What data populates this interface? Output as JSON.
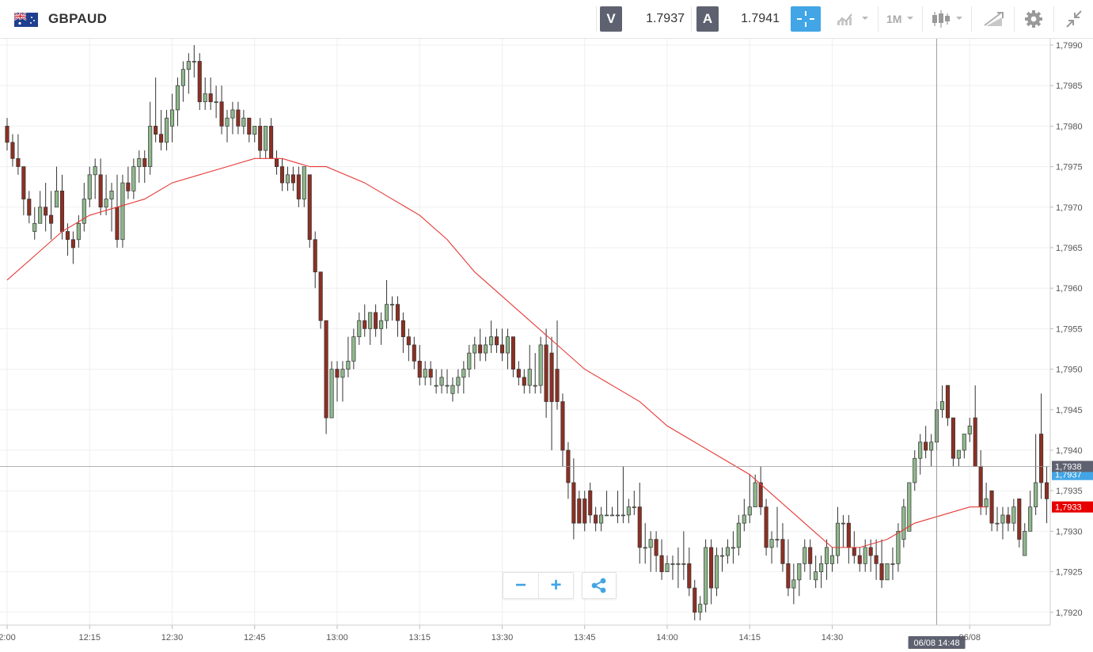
{
  "header": {
    "symbol": "GBPAUD",
    "flag_icon": "gb-au-flag-icon",
    "bid_label": "V",
    "bid_value": "1.7937",
    "ask_label": "A",
    "ask_value": "1.7941",
    "timeframe_label": "1M",
    "tools": [
      "crosshair-icon",
      "indicators-icon",
      "timeframe-dropdown",
      "chart-type-candles-icon",
      "drawing-tools-icon",
      "gear-icon",
      "collapse-icon"
    ],
    "accent_color": "#42a5e5"
  },
  "chart_data": {
    "type": "candlestick",
    "title": "",
    "xlabel": "",
    "ylabel": "",
    "ylim": [
      1.7918,
      1.7991
    ],
    "y_ticks": [
      "1,7990",
      "1,7985",
      "1,7980",
      "1,7975",
      "1,7970",
      "1,7965",
      "1,7960",
      "1,7955",
      "1,7950",
      "1,7945",
      "1,7940",
      "1,7935",
      "1,7930",
      "1,7925",
      "1,7920"
    ],
    "x_ticks": [
      {
        "label": "2:00",
        "minute": 720
      },
      {
        "label": "12:15",
        "minute": 735
      },
      {
        "label": "12:30",
        "minute": 750
      },
      {
        "label": "12:45",
        "minute": 765
      },
      {
        "label": "13:00",
        "minute": 780
      },
      {
        "label": "13:15",
        "minute": 795
      },
      {
        "label": "13:30",
        "minute": 810
      },
      {
        "label": "13:45",
        "minute": 825
      },
      {
        "label": "14:00",
        "minute": 840
      },
      {
        "label": "14:15",
        "minute": 855
      },
      {
        "label": "14:30",
        "minute": 870
      },
      {
        "label": "06/08",
        "minute": 895
      }
    ],
    "candle_interval_minutes": 1,
    "first_candle_minute": 720,
    "ohlc": [
      [
        1.798,
        1.7981,
        1.7977,
        1.7978
      ],
      [
        1.7978,
        1.7979,
        1.7975,
        1.7976
      ],
      [
        1.7976,
        1.7979,
        1.7974,
        1.7975
      ],
      [
        1.7975,
        1.7975,
        1.7969,
        1.7971
      ],
      [
        1.7971,
        1.7972,
        1.7968,
        1.7969
      ],
      [
        1.7967,
        1.797,
        1.7966,
        1.7968
      ],
      [
        1.7968,
        1.7972,
        1.7968,
        1.797
      ],
      [
        1.797,
        1.7973,
        1.7967,
        1.7969
      ],
      [
        1.7969,
        1.7972,
        1.7966,
        1.7968
      ],
      [
        1.797,
        1.7975,
        1.797,
        1.7972
      ],
      [
        1.7972,
        1.7974,
        1.7966,
        1.7967
      ],
      [
        1.7967,
        1.7968,
        1.7964,
        1.7966
      ],
      [
        1.7966,
        1.7967,
        1.7963,
        1.7965
      ],
      [
        1.7966,
        1.7969,
        1.7965,
        1.7968
      ],
      [
        1.7968,
        1.7973,
        1.7967,
        1.7971
      ],
      [
        1.7971,
        1.7975,
        1.797,
        1.7974
      ],
      [
        1.7974,
        1.7976,
        1.7971,
        1.7975
      ],
      [
        1.7974,
        1.7976,
        1.7969,
        1.797
      ],
      [
        1.797,
        1.7974,
        1.7969,
        1.7971
      ],
      [
        1.7971,
        1.7973,
        1.7967,
        1.7972
      ],
      [
        1.797,
        1.7974,
        1.7965,
        1.7966
      ],
      [
        1.7966,
        1.7974,
        1.7965,
        1.7973
      ],
      [
        1.7973,
        1.7975,
        1.7971,
        1.7972
      ],
      [
        1.7972,
        1.7976,
        1.7971,
        1.7975
      ],
      [
        1.7975,
        1.7977,
        1.7973,
        1.7976
      ],
      [
        1.7976,
        1.7977,
        1.7973,
        1.7975
      ],
      [
        1.7975,
        1.7983,
        1.7974,
        1.798
      ],
      [
        1.798,
        1.7986,
        1.7978,
        1.7979
      ],
      [
        1.7979,
        1.7982,
        1.7977,
        1.7978
      ],
      [
        1.7978,
        1.7982,
        1.7977,
        1.7981
      ],
      [
        1.798,
        1.7984,
        1.7978,
        1.7982
      ],
      [
        1.7982,
        1.7986,
        1.798,
        1.7985
      ],
      [
        1.7985,
        1.7988,
        1.7983,
        1.7987
      ],
      [
        1.7987,
        1.7989,
        1.7984,
        1.7988
      ],
      [
        1.7988,
        1.799,
        1.7986,
        1.7988
      ],
      [
        1.7988,
        1.7989,
        1.7982,
        1.7983
      ],
      [
        1.7983,
        1.7986,
        1.7982,
        1.7984
      ],
      [
        1.7984,
        1.7986,
        1.7982,
        1.7983
      ],
      [
        1.7983,
        1.7985,
        1.7981,
        1.7983
      ],
      [
        1.7983,
        1.7985,
        1.7979,
        1.798
      ],
      [
        1.798,
        1.7982,
        1.7978,
        1.7981
      ],
      [
        1.7981,
        1.7983,
        1.7979,
        1.7982
      ],
      [
        1.7982,
        1.7983,
        1.7979,
        1.798
      ],
      [
        1.798,
        1.7982,
        1.7979,
        1.7981
      ],
      [
        1.7981,
        1.7981,
        1.7978,
        1.7979
      ],
      [
        1.7979,
        1.798,
        1.7978,
        1.798
      ],
      [
        1.798,
        1.7981,
        1.7976,
        1.7977
      ],
      [
        1.7977,
        1.798,
        1.7976,
        1.798
      ],
      [
        1.798,
        1.7981,
        1.7976,
        1.7976
      ],
      [
        1.7976,
        1.7977,
        1.7974,
        1.7975
      ],
      [
        1.7975,
        1.7976,
        1.7972,
        1.7973
      ],
      [
        1.7973,
        1.7975,
        1.7972,
        1.7974
      ],
      [
        1.7974,
        1.7975,
        1.7972,
        1.7973
      ],
      [
        1.7974,
        1.7975,
        1.797,
        1.7971
      ],
      [
        1.7971,
        1.7975,
        1.797,
        1.7975
      ],
      [
        1.7974,
        1.7974,
        1.7965,
        1.7966
      ],
      [
        1.7966,
        1.7967,
        1.796,
        1.7962
      ],
      [
        1.7962,
        1.7962,
        1.7955,
        1.7956
      ],
      [
        1.7956,
        1.7956,
        1.7942,
        1.7944
      ],
      [
        1.7944,
        1.7951,
        1.7944,
        1.795
      ],
      [
        1.795,
        1.7951,
        1.7946,
        1.7949
      ],
      [
        1.7949,
        1.7951,
        1.7946,
        1.795
      ],
      [
        1.795,
        1.7954,
        1.7949,
        1.7951
      ],
      [
        1.7951,
        1.7955,
        1.795,
        1.7954
      ],
      [
        1.7954,
        1.7957,
        1.7953,
        1.7956
      ],
      [
        1.7956,
        1.7958,
        1.7954,
        1.7955
      ],
      [
        1.7955,
        1.7957,
        1.7953,
        1.7957
      ],
      [
        1.7957,
        1.7958,
        1.7954,
        1.7955
      ],
      [
        1.7955,
        1.7957,
        1.7953,
        1.7956
      ],
      [
        1.7956,
        1.7961,
        1.7955,
        1.7958
      ],
      [
        1.7958,
        1.7959,
        1.7956,
        1.7958
      ],
      [
        1.7958,
        1.7959,
        1.7954,
        1.7956
      ],
      [
        1.7956,
        1.7957,
        1.7952,
        1.7954
      ],
      [
        1.7954,
        1.7955,
        1.7951,
        1.7953
      ],
      [
        1.7953,
        1.7954,
        1.795,
        1.7951
      ],
      [
        1.7951,
        1.7953,
        1.7948,
        1.7949
      ],
      [
        1.7949,
        1.7951,
        1.7948,
        1.795
      ],
      [
        1.795,
        1.7951,
        1.7948,
        1.7949
      ],
      [
        1.7948,
        1.795,
        1.7947,
        1.7948
      ],
      [
        1.7948,
        1.795,
        1.7947,
        1.7949
      ],
      [
        1.7948,
        1.795,
        1.7947,
        1.7948
      ],
      [
        1.7947,
        1.7949,
        1.7946,
        1.7948
      ],
      [
        1.7948,
        1.795,
        1.7947,
        1.7949
      ],
      [
        1.7949,
        1.7951,
        1.7947,
        1.795
      ],
      [
        1.795,
        1.7953,
        1.7949,
        1.7952
      ],
      [
        1.7952,
        1.7954,
        1.795,
        1.7953
      ],
      [
        1.7953,
        1.7955,
        1.7951,
        1.7952
      ],
      [
        1.7952,
        1.7954,
        1.7951,
        1.7953
      ],
      [
        1.7953,
        1.7956,
        1.7952,
        1.7954
      ],
      [
        1.7954,
        1.7955,
        1.7952,
        1.7953
      ],
      [
        1.7953,
        1.7955,
        1.7951,
        1.7952
      ],
      [
        1.7952,
        1.7955,
        1.795,
        1.7954
      ],
      [
        1.7954,
        1.7954,
        1.7949,
        1.795
      ],
      [
        1.795,
        1.7951,
        1.7948,
        1.7949
      ],
      [
        1.7949,
        1.795,
        1.7947,
        1.7948
      ],
      [
        1.7948,
        1.7953,
        1.7947,
        1.795
      ],
      [
        1.7948,
        1.7952,
        1.7947,
        1.7948
      ],
      [
        1.7948,
        1.7954,
        1.7947,
        1.7953
      ],
      [
        1.7953,
        1.7955,
        1.7944,
        1.7946
      ],
      [
        1.7952,
        1.7954,
        1.794,
        1.7946
      ],
      [
        1.795,
        1.7956,
        1.7945,
        1.7946
      ],
      [
        1.7946,
        1.7947,
        1.7938,
        1.794
      ],
      [
        1.794,
        1.7941,
        1.7934,
        1.7936
      ],
      [
        1.7936,
        1.7939,
        1.7929,
        1.7931
      ],
      [
        1.7934,
        1.7935,
        1.7931,
        1.7931
      ],
      [
        1.7934,
        1.7935,
        1.793,
        1.7931
      ],
      [
        1.7935,
        1.7936,
        1.7931,
        1.7932
      ],
      [
        1.7932,
        1.7933,
        1.793,
        1.7931
      ],
      [
        1.7931,
        1.7933,
        1.793,
        1.7932
      ],
      [
        1.7932,
        1.7935,
        1.7932,
        1.7932
      ],
      [
        1.7932,
        1.7933,
        1.7932,
        1.7932
      ],
      [
        1.7932,
        1.7935,
        1.7931,
        1.7932
      ],
      [
        1.7932,
        1.7938,
        1.7931,
        1.7932
      ],
      [
        1.7932,
        1.7934,
        1.7931,
        1.7933
      ],
      [
        1.7933,
        1.7935,
        1.7932,
        1.7933
      ],
      [
        1.7933,
        1.7936,
        1.7926,
        1.7928
      ],
      [
        1.7928,
        1.7931,
        1.7926,
        1.7928
      ],
      [
        1.7928,
        1.793,
        1.7925,
        1.7929
      ],
      [
        1.7929,
        1.793,
        1.7925,
        1.7927
      ],
      [
        1.7927,
        1.7929,
        1.7924,
        1.7925
      ],
      [
        1.7925,
        1.7927,
        1.7925,
        1.7926
      ],
      [
        1.7926,
        1.7927,
        1.7924,
        1.7926
      ],
      [
        1.7926,
        1.7928,
        1.7923,
        1.7926
      ],
      [
        1.7926,
        1.793,
        1.7924,
        1.7926
      ],
      [
        1.7926,
        1.7928,
        1.7922,
        1.7923
      ],
      [
        1.7923,
        1.7924,
        1.7919,
        1.792
      ],
      [
        1.792,
        1.7922,
        1.7919,
        1.7921
      ],
      [
        1.7921,
        1.7929,
        1.792,
        1.7928
      ],
      [
        1.7928,
        1.7929,
        1.7921,
        1.7923
      ],
      [
        1.7923,
        1.7928,
        1.7922,
        1.7927
      ],
      [
        1.7927,
        1.7928,
        1.7925,
        1.7927
      ],
      [
        1.7927,
        1.7929,
        1.7926,
        1.7928
      ],
      [
        1.7928,
        1.793,
        1.7926,
        1.7928
      ],
      [
        1.7928,
        1.7932,
        1.7927,
        1.7931
      ],
      [
        1.7931,
        1.7934,
        1.793,
        1.7932
      ],
      [
        1.7932,
        1.7937,
        1.7931,
        1.7933
      ],
      [
        1.7933,
        1.7937,
        1.7933,
        1.7936
      ],
      [
        1.7936,
        1.7938,
        1.7932,
        1.7933
      ],
      [
        1.7933,
        1.7934,
        1.7927,
        1.7928
      ],
      [
        1.7928,
        1.793,
        1.7926,
        1.7929
      ],
      [
        1.7929,
        1.7933,
        1.7928,
        1.7929
      ],
      [
        1.7929,
        1.7931,
        1.7925,
        1.7926
      ],
      [
        1.7926,
        1.7929,
        1.7922,
        1.7923
      ],
      [
        1.7923,
        1.7926,
        1.7921,
        1.7924
      ],
      [
        1.7924,
        1.7926,
        1.7922,
        1.7926
      ],
      [
        1.7926,
        1.7929,
        1.7925,
        1.7928
      ],
      [
        1.7928,
        1.7929,
        1.7924,
        1.7926
      ],
      [
        1.7924,
        1.7927,
        1.7923,
        1.7925
      ],
      [
        1.7925,
        1.7927,
        1.7923,
        1.7926
      ],
      [
        1.7926,
        1.7929,
        1.7924,
        1.7928
      ],
      [
        1.7926,
        1.7928,
        1.7925,
        1.7927
      ],
      [
        1.7927,
        1.7933,
        1.7926,
        1.7931
      ],
      [
        1.7931,
        1.7932,
        1.7928,
        1.7931
      ],
      [
        1.7931,
        1.7932,
        1.7926,
        1.7928
      ],
      [
        1.7928,
        1.793,
        1.7926,
        1.7927
      ],
      [
        1.7927,
        1.7928,
        1.7925,
        1.7926
      ],
      [
        1.7926,
        1.7929,
        1.7925,
        1.7928
      ],
      [
        1.7928,
        1.7929,
        1.7925,
        1.7927
      ],
      [
        1.7927,
        1.7929,
        1.7924,
        1.7926
      ],
      [
        1.7926,
        1.7929,
        1.7923,
        1.7924
      ],
      [
        1.7924,
        1.7926,
        1.7924,
        1.7926
      ],
      [
        1.7926,
        1.7928,
        1.7924,
        1.7926
      ],
      [
        1.7926,
        1.7931,
        1.7925,
        1.793
      ],
      [
        1.7929,
        1.7934,
        1.7928,
        1.7933
      ],
      [
        1.793,
        1.7936,
        1.793,
        1.7936
      ],
      [
        1.7936,
        1.794,
        1.7935,
        1.7939
      ],
      [
        1.7939,
        1.7942,
        1.7937,
        1.7941
      ],
      [
        1.7941,
        1.7943,
        1.7939,
        1.794
      ],
      [
        1.794,
        1.7942,
        1.7938,
        1.7941
      ],
      [
        1.7941,
        1.7946,
        1.794,
        1.7945
      ],
      [
        1.7945,
        1.7948,
        1.7944,
        1.7946
      ],
      [
        1.7948,
        1.7948,
        1.7943,
        1.7944
      ],
      [
        1.7944,
        1.7944,
        1.7938,
        1.7939
      ],
      [
        1.7939,
        1.794,
        1.7938,
        1.794
      ],
      [
        1.794,
        1.7942,
        1.7939,
        1.7942
      ],
      [
        1.7942,
        1.7944,
        1.7941,
        1.7943
      ],
      [
        1.7944,
        1.7948,
        1.7938,
        1.7938
      ],
      [
        1.7938,
        1.794,
        1.7932,
        1.7933
      ],
      [
        1.7933,
        1.7936,
        1.7932,
        1.7934
      ],
      [
        1.7935,
        1.7935,
        1.793,
        1.7931
      ],
      [
        1.7931,
        1.7933,
        1.793,
        1.7931
      ],
      [
        1.7931,
        1.7933,
        1.7929,
        1.7932
      ],
      [
        1.7932,
        1.7933,
        1.793,
        1.7931
      ],
      [
        1.7931,
        1.7934,
        1.793,
        1.7933
      ],
      [
        1.7934,
        1.7934,
        1.7928,
        1.7929
      ],
      [
        1.7927,
        1.7931,
        1.7927,
        1.793
      ],
      [
        1.793,
        1.7935,
        1.793,
        1.7933
      ],
      [
        1.7933,
        1.7942,
        1.7932,
        1.7936
      ],
      [
        1.7942,
        1.7947,
        1.7934,
        1.7936
      ],
      [
        1.7936,
        1.7938,
        1.7931,
        1.7934
      ],
      [
        1.7934,
        1.7939,
        1.7933,
        1.7937
      ]
    ],
    "moving_average": {
      "color": "#e53935",
      "points": [
        [
          720,
          1.7961
        ],
        [
          725,
          1.7964
        ],
        [
          730,
          1.7967
        ],
        [
          735,
          1.7969
        ],
        [
          740,
          1.797
        ],
        [
          745,
          1.7971
        ],
        [
          750,
          1.7973
        ],
        [
          755,
          1.7974
        ],
        [
          760,
          1.7975
        ],
        [
          765,
          1.7976
        ],
        [
          770,
          1.7976
        ],
        [
          775,
          1.7975
        ],
        [
          778,
          1.7975
        ],
        [
          785,
          1.7973
        ],
        [
          790,
          1.7971
        ],
        [
          795,
          1.7969
        ],
        [
          800,
          1.7966
        ],
        [
          805,
          1.7962
        ],
        [
          810,
          1.7959
        ],
        [
          815,
          1.7956
        ],
        [
          820,
          1.7953
        ],
        [
          825,
          1.795
        ],
        [
          830,
          1.7948
        ],
        [
          835,
          1.7946
        ],
        [
          840,
          1.7943
        ],
        [
          845,
          1.7941
        ],
        [
          850,
          1.7939
        ],
        [
          855,
          1.7937
        ],
        [
          860,
          1.7934
        ],
        [
          865,
          1.7931
        ],
        [
          870,
          1.7928
        ],
        [
          875,
          1.7928
        ],
        [
          880,
          1.7929
        ],
        [
          885,
          1.7931
        ],
        [
          890,
          1.7932
        ],
        [
          895,
          1.7933
        ],
        [
          898,
          1.7933
        ]
      ]
    },
    "price_line": {
      "value": 1.7938,
      "label": "1,7938",
      "color": "#5e6270"
    },
    "price_labels": [
      {
        "label": "1,7937",
        "value": 1.7937,
        "color": "#42a5e5"
      },
      {
        "label": "1,7933",
        "value": 1.7933,
        "color": "#e60000"
      }
    ],
    "crosshair": {
      "minute": 889,
      "label": "06/08 14:48",
      "color": "#5e6270"
    },
    "up_color": "#8fb88c",
    "down_color": "#8e2f23",
    "wick_color": "#333333",
    "grid": true,
    "legend": "none"
  }
}
